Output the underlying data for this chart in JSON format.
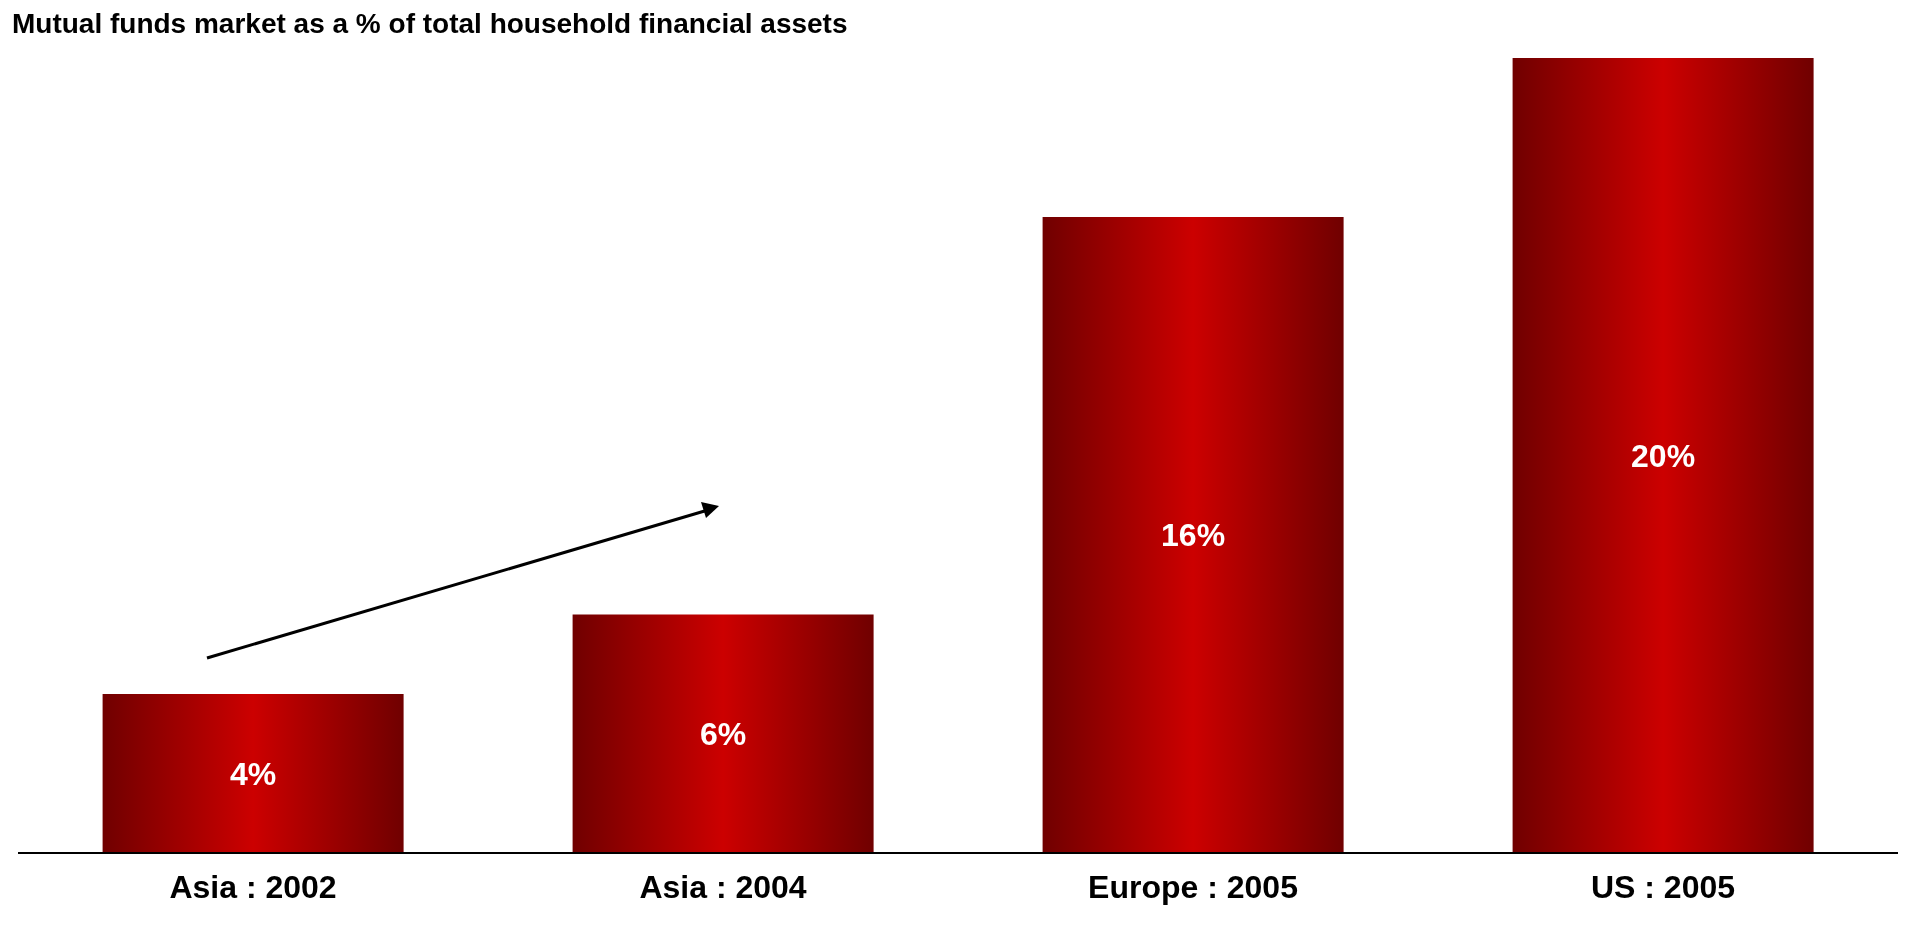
{
  "chart_data": {
    "type": "bar",
    "title": "Mutual funds market as a % of total household financial assets",
    "categories": [
      "Asia : 2002",
      "Asia : 2004",
      "Europe : 2005",
      "US : 2005"
    ],
    "values": [
      4,
      6,
      16,
      20
    ],
    "value_labels": [
      "4%",
      "6%",
      "16%",
      "20%"
    ],
    "color": "#cc0000"
  }
}
